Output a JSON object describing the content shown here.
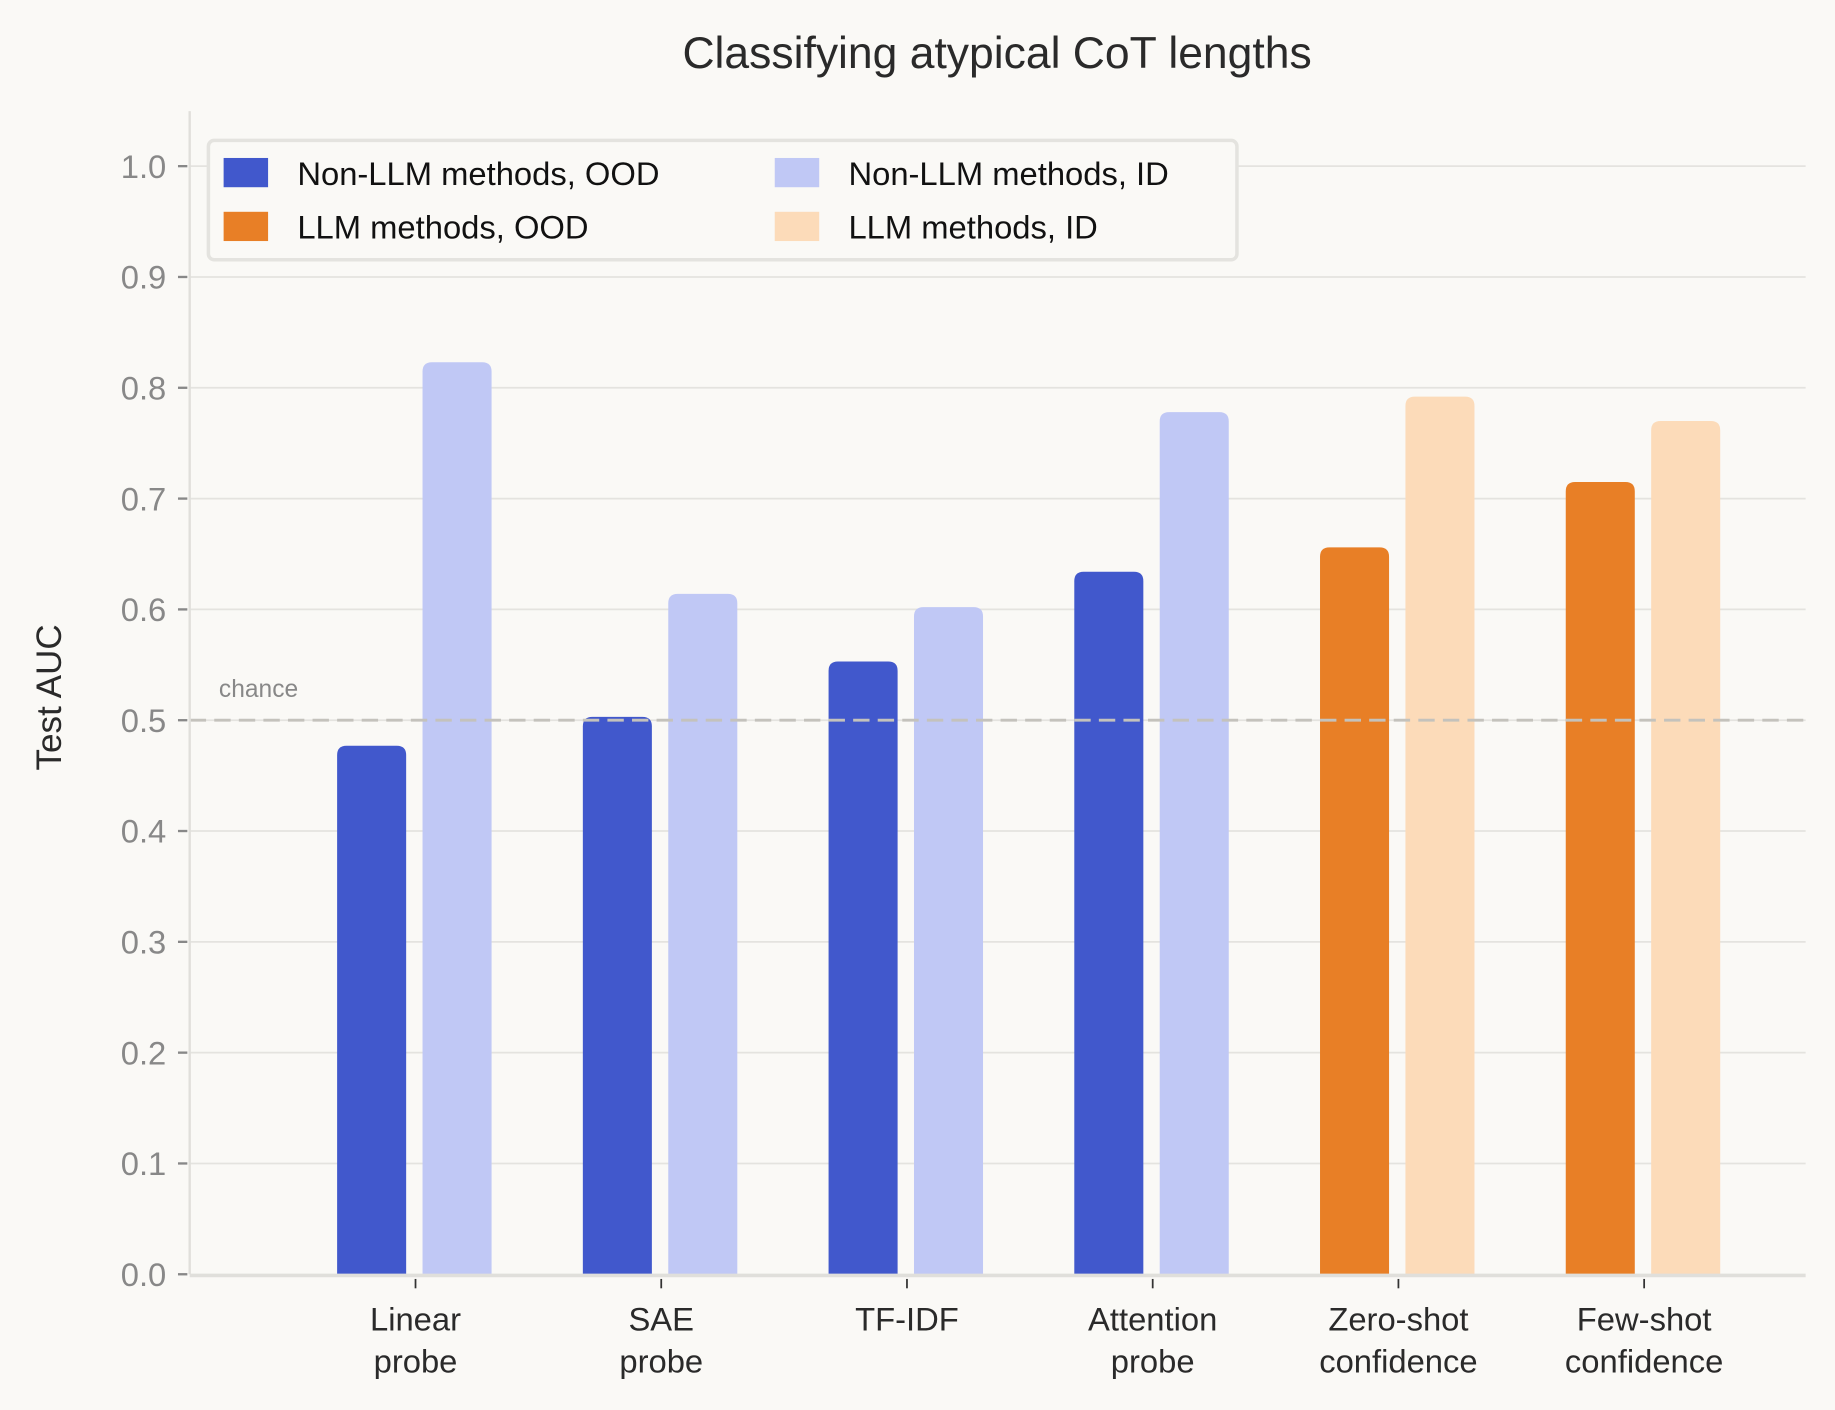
{
  "chart_data": {
    "type": "bar",
    "title": "Classifying atypical CoT lengths",
    "xlabel": "",
    "ylabel": "Test AUC",
    "ylim": [
      0,
      1.05
    ],
    "yticks": [
      "0.0",
      "0.1",
      "0.2",
      "0.3",
      "0.4",
      "0.5",
      "0.6",
      "0.7",
      "0.8",
      "0.9",
      "1.0"
    ],
    "grid": true,
    "categories": [
      [
        "Linear",
        "probe"
      ],
      [
        "SAE",
        "probe"
      ],
      [
        "TF-IDF"
      ],
      [
        "Attention",
        "probe"
      ],
      [
        "Zero-shot",
        "confidence"
      ],
      [
        "Few-shot",
        "confidence"
      ]
    ],
    "series": [
      {
        "name": "OOD",
        "values": [
          0.477,
          0.503,
          0.553,
          0.634,
          0.656,
          0.715
        ]
      },
      {
        "name": "ID",
        "values": [
          0.823,
          0.614,
          0.602,
          0.778,
          0.792,
          0.77
        ]
      }
    ],
    "bar_colors": {
      "ood": [
        "#4158cc",
        "#4158cc",
        "#4158cc",
        "#4158cc",
        "#e87f26",
        "#e87f26"
      ],
      "id": [
        "#c0c8f5",
        "#c0c8f5",
        "#c0c8f5",
        "#c0c8f5",
        "#fcdbb9",
        "#fcdbb9"
      ]
    },
    "reference_line": {
      "value": 0.5,
      "label": "chance"
    },
    "legend": {
      "placement": "top-left",
      "entries": [
        {
          "label": "Non-LLM methods, OOD",
          "color": "#4158cc"
        },
        {
          "label": "Non-LLM methods, ID",
          "color": "#c0c8f5"
        },
        {
          "label": "LLM methods, OOD",
          "color": "#e87f26"
        },
        {
          "label": "LLM methods, ID",
          "color": "#fcdbb9"
        }
      ]
    }
  }
}
